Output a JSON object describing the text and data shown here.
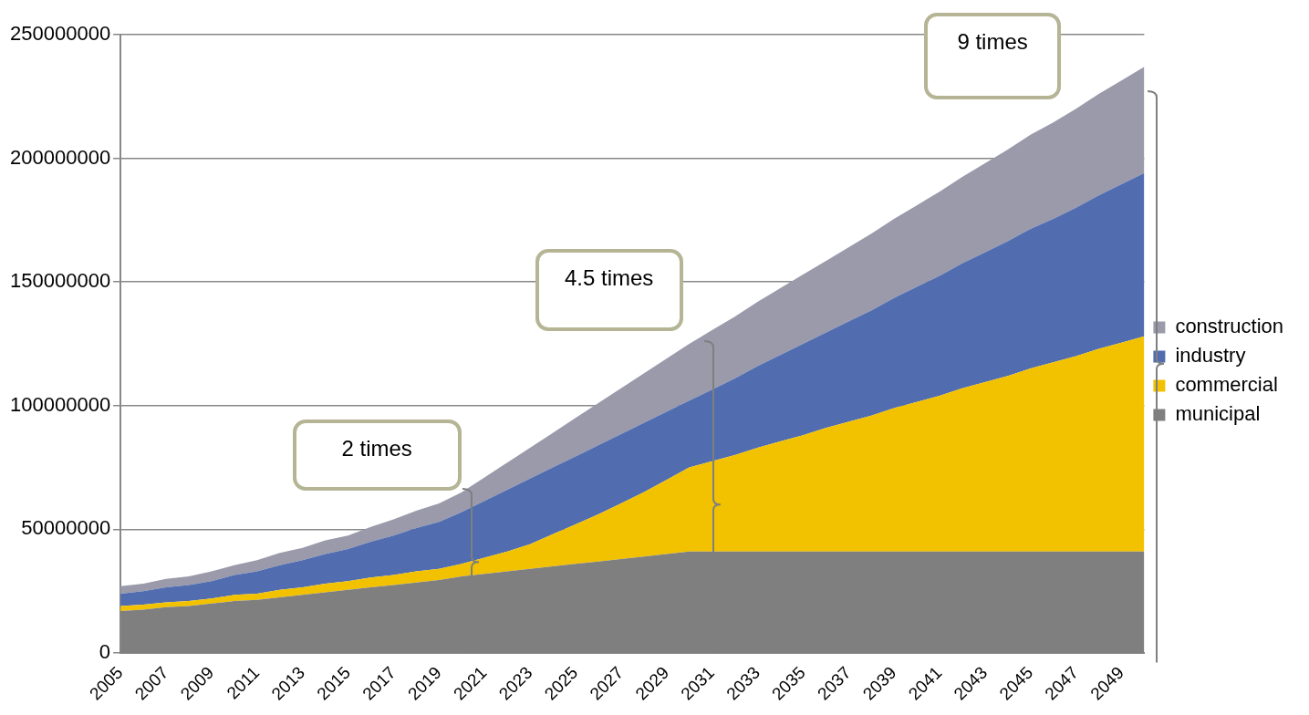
{
  "chart_data": {
    "type": "area",
    "stacked": true,
    "categories": [
      "2005",
      null,
      "2007",
      null,
      "2009",
      null,
      "2011",
      null,
      "2013",
      null,
      "2015",
      null,
      "2017",
      null,
      "2019",
      null,
      "2021",
      null,
      "2023",
      null,
      "2025",
      null,
      "2027",
      null,
      "2029",
      null,
      "2031",
      null,
      "2033",
      null,
      "2035",
      null,
      "2037",
      null,
      "2039",
      null,
      "2041",
      null,
      "2043",
      null,
      "2045",
      null,
      "2047",
      null,
      "2049",
      null
    ],
    "series": [
      {
        "name": "municipal",
        "color": "#7f7f7f",
        "values": [
          17000000,
          17500000,
          18500000,
          19000000,
          20000000,
          21000000,
          21500000,
          22500000,
          23500000,
          24500000,
          25500000,
          26500000,
          27500000,
          28500000,
          29500000,
          31000000,
          32000000,
          33000000,
          34000000,
          35000000,
          36000000,
          37000000,
          38000000,
          39000000,
          40000000,
          41000000,
          41000000,
          41000000,
          41000000,
          41000000,
          41000000,
          41000000,
          41000000,
          41000000,
          41000000,
          41000000,
          41000000,
          41000000,
          41000000,
          41000000,
          41000000,
          41000000,
          41000000,
          41000000,
          41000000,
          41000000
        ]
      },
      {
        "name": "commercial",
        "color": "#f2c200",
        "values": [
          2000000,
          2000000,
          2000000,
          2000000,
          2000000,
          2500000,
          2500000,
          3000000,
          3000000,
          3500000,
          3500000,
          4000000,
          4000000,
          4500000,
          4500000,
          5000000,
          6500000,
          8000000,
          10000000,
          13000000,
          16000000,
          19000000,
          22500000,
          26000000,
          30000000,
          34000000,
          36500000,
          39000000,
          42000000,
          44500000,
          47000000,
          50000000,
          52500000,
          55000000,
          58000000,
          60500000,
          63000000,
          66000000,
          68500000,
          71000000,
          74000000,
          76500000,
          79000000,
          82000000,
          84500000,
          87000000
        ]
      },
      {
        "name": "industry",
        "color": "#516db0",
        "values": [
          5000000,
          5500000,
          6000000,
          6500000,
          7000000,
          8000000,
          9000000,
          10000000,
          11000000,
          12000000,
          13000000,
          14500000,
          16000000,
          17500000,
          19000000,
          21000000,
          23000000,
          25000000,
          26500000,
          27000000,
          27500000,
          28000000,
          28000000,
          28000000,
          27500000,
          27000000,
          29000000,
          31000000,
          33000000,
          35000000,
          37000000,
          38500000,
          40500000,
          42500000,
          44500000,
          46500000,
          48500000,
          50500000,
          52500000,
          54500000,
          56500000,
          58000000,
          60000000,
          62000000,
          64000000,
          66000000
        ]
      },
      {
        "name": "construction",
        "color": "#9a9aab",
        "values": [
          3000000,
          3000000,
          3500000,
          3500000,
          4000000,
          4000000,
          4500000,
          5000000,
          5000000,
          5500000,
          5500000,
          6000000,
          6500000,
          7000000,
          7500000,
          8000000,
          9500000,
          11000000,
          12500000,
          14000000,
          15500000,
          17000000,
          18500000,
          20000000,
          21500000,
          23000000,
          24000000,
          25000000,
          26000000,
          27000000,
          28000000,
          29000000,
          30000000,
          31000000,
          32000000,
          33000000,
          34000000,
          35000000,
          36000000,
          37000000,
          38000000,
          39000000,
          40000000,
          41000000,
          42000000,
          43000000
        ]
      }
    ],
    "ylim": [
      0,
      250000000
    ],
    "yticks": [
      0,
      50000000,
      100000000,
      150000000,
      200000000,
      250000000
    ],
    "grid": "y",
    "legend": "right",
    "annotations": [
      "2 times",
      "4.5 times",
      "9 times"
    ]
  }
}
